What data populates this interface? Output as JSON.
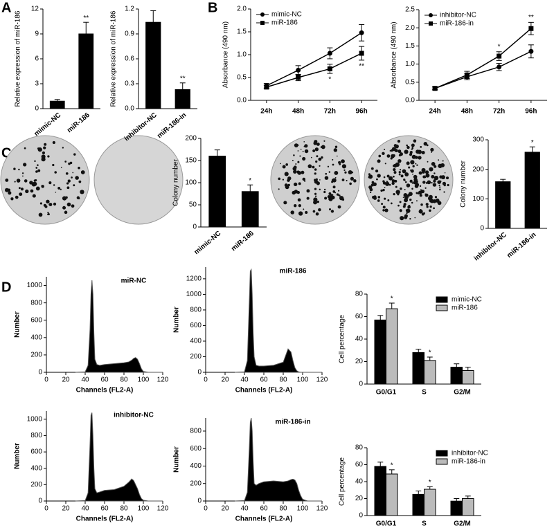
{
  "panel_letters": [
    "A",
    "B",
    "C",
    "D"
  ],
  "chart_data": [
    {
      "type": "bar",
      "ylabel": "Relative expression of miR-186",
      "categories": [
        "mimic-NC",
        "miR-186"
      ],
      "values": [
        0.9,
        9.0
      ],
      "errors": [
        0.2,
        1.4
      ],
      "significance": [
        null,
        "**"
      ],
      "color": "#000000",
      "ylim": [
        0,
        12
      ],
      "yticks": [
        0,
        3,
        6,
        9,
        12
      ]
    },
    {
      "type": "bar",
      "ylabel": "Relative expression of miR-186",
      "categories": [
        "inhibitor-NC",
        "miR-186-in"
      ],
      "values": [
        1.04,
        0.23
      ],
      "errors": [
        0.14,
        0.08
      ],
      "significance": [
        null,
        "**"
      ],
      "color": "#000000",
      "ylim": [
        0,
        1.2
      ],
      "yticks": [
        {
          "value": 0,
          "label": "0.0"
        },
        0.3,
        0.6,
        0.9,
        1.2
      ]
    },
    {
      "type": "line",
      "ylabel": "Absorbance (490 nm)",
      "categories": [
        "24h",
        "48h",
        "72h",
        "96h"
      ],
      "legend": "upper left",
      "ylim": [
        0,
        2.0
      ],
      "yticks": [
        {
          "value": 0,
          "label": "0.0"
        },
        0.5,
        {
          "value": 1,
          "label": "1.0"
        },
        1.5,
        {
          "value": 2,
          "label": "2.0"
        }
      ],
      "series": [
        {
          "name": "mimic-NC",
          "color": "#000000",
          "marker": "circle",
          "values": [
            0.32,
            0.66,
            1.03,
            1.48
          ],
          "errors": [
            0.05,
            0.1,
            0.12,
            0.18
          ],
          "significance": [
            null,
            null,
            null,
            null
          ]
        },
        {
          "name": "miR-186",
          "color": "#000000",
          "marker": "square",
          "values": [
            0.29,
            0.5,
            0.69,
            1.03
          ],
          "errors": [
            0.04,
            0.07,
            0.1,
            0.15
          ],
          "significance": [
            null,
            null,
            "*",
            "**"
          ]
        }
      ]
    },
    {
      "type": "line",
      "ylabel": "Absorbance (490 nm)",
      "categories": [
        "24h",
        "48h",
        "72h",
        "96h"
      ],
      "legend": "upper left",
      "ylim": [
        0,
        2.5
      ],
      "yticks": [
        {
          "value": 0,
          "label": "0.0"
        },
        0.5,
        {
          "value": 1,
          "label": "1.0"
        },
        1.5,
        {
          "value": 2,
          "label": "2.0"
        },
        2.5
      ],
      "series": [
        {
          "name": "inhibitor-NC",
          "color": "#000000",
          "marker": "circle",
          "values": [
            0.33,
            0.65,
            0.92,
            1.35
          ],
          "errors": [
            0.04,
            0.08,
            0.1,
            0.18
          ],
          "significance": [
            null,
            null,
            null,
            null
          ]
        },
        {
          "name": "miR-186-in",
          "color": "#000000",
          "marker": "square",
          "values": [
            0.33,
            0.7,
            1.22,
            1.98
          ],
          "errors": [
            0.04,
            0.1,
            0.12,
            0.17
          ],
          "significance": [
            null,
            null,
            "*",
            "**"
          ]
        }
      ]
    },
    {
      "type": "bar",
      "ylabel": "Colony number",
      "categories": [
        "mimic-NC",
        "miR-186"
      ],
      "values": [
        160,
        80
      ],
      "errors": [
        14,
        15
      ],
      "significance": [
        null,
        "*"
      ],
      "color": "#000000",
      "ylim": [
        0,
        200
      ],
      "yticks": [
        0,
        50,
        100,
        150,
        200
      ]
    },
    {
      "type": "bar",
      "ylabel": "Colony number",
      "categories": [
        "inhibitor-NC",
        "miR-186-in"
      ],
      "values": [
        158,
        258
      ],
      "errors": [
        8,
        18
      ],
      "significance": [
        null,
        "*"
      ],
      "color": "#000000",
      "ylim": [
        0,
        300
      ],
      "yticks": [
        0,
        100,
        200,
        300
      ]
    },
    {
      "type": "area",
      "title": "miR-NC",
      "xlabel": "Channels (FL2-A)",
      "ylabel": "Number",
      "color": "#000000",
      "x": [
        30,
        40,
        43,
        45,
        46,
        47,
        48,
        49,
        50,
        52,
        55,
        60,
        70,
        80,
        85,
        88,
        90,
        92,
        94,
        96,
        98,
        100,
        105,
        120
      ],
      "values": [
        0,
        5,
        80,
        500,
        900,
        1060,
        900,
        450,
        150,
        90,
        80,
        90,
        100,
        110,
        120,
        140,
        160,
        170,
        150,
        100,
        40,
        10,
        0,
        0
      ],
      "xlim": [
        0,
        120
      ],
      "xticks": [
        0,
        20,
        40,
        60,
        80,
        100,
        120
      ],
      "ylim": [
        0,
        1100
      ],
      "yticks": [
        0,
        200,
        400,
        600,
        800,
        1000
      ]
    },
    {
      "type": "area",
      "title": "miR-186",
      "xlabel": "Channels (FL2-A)",
      "ylabel": "Number",
      "color": "#000000",
      "x": [
        30,
        40,
        43,
        45,
        46,
        47,
        48,
        49,
        50,
        52,
        55,
        60,
        70,
        80,
        85,
        88,
        90,
        92,
        94,
        96,
        98,
        100,
        105,
        120
      ],
      "values": [
        0,
        5,
        150,
        900,
        1300,
        1320,
        1000,
        500,
        200,
        90,
        80,
        80,
        90,
        130,
        300,
        260,
        150,
        60,
        20,
        5,
        0,
        0,
        0,
        0
      ],
      "xlim": [
        0,
        120
      ],
      "xticks": [
        0,
        20,
        40,
        60,
        80,
        100,
        120
      ],
      "ylim": [
        0,
        1350
      ],
      "yticks": [
        0,
        200,
        400,
        600,
        800,
        1000,
        1200
      ]
    },
    {
      "type": "area",
      "title": "inhibitor-NC",
      "xlabel": "Channels (FL2-A)",
      "ylabel": "Number",
      "color": "#000000",
      "x": [
        30,
        40,
        43,
        45,
        46,
        47,
        48,
        49,
        50,
        52,
        55,
        60,
        70,
        80,
        85,
        88,
        90,
        92,
        94,
        96,
        98,
        100,
        105,
        120
      ],
      "values": [
        0,
        5,
        100,
        700,
        1050,
        1080,
        800,
        400,
        150,
        100,
        110,
        130,
        140,
        180,
        230,
        270,
        250,
        200,
        150,
        80,
        30,
        10,
        0,
        0
      ],
      "xlim": [
        0,
        120
      ],
      "xticks": [
        0,
        20,
        40,
        60,
        80,
        100,
        120
      ],
      "ylim": [
        0,
        1100
      ],
      "yticks": [
        0,
        200,
        400,
        600,
        800,
        1000
      ]
    },
    {
      "type": "area",
      "title": "miR-186-in",
      "xlabel": "Channels (FL2-A)",
      "ylabel": "Number",
      "color": "#000000",
      "x": [
        30,
        40,
        43,
        45,
        46,
        47,
        48,
        49,
        50,
        52,
        55,
        60,
        70,
        80,
        85,
        88,
        90,
        92,
        94,
        96,
        98,
        100,
        105,
        120
      ],
      "values": [
        0,
        5,
        100,
        600,
        900,
        950,
        800,
        450,
        200,
        180,
        200,
        220,
        230,
        220,
        230,
        245,
        250,
        240,
        200,
        120,
        60,
        20,
        0,
        0
      ],
      "xlim": [
        0,
        120
      ],
      "xticks": [
        0,
        20,
        40,
        60,
        80,
        100,
        120
      ],
      "ylim": [
        0,
        950
      ],
      "yticks": [
        0,
        200,
        400,
        600,
        800
      ]
    },
    {
      "type": "bar",
      "ylabel": "Cell percentage",
      "categories": [
        "G0/G1",
        "S",
        "G2/M"
      ],
      "legend": "upper right",
      "ylim": [
        0,
        80
      ],
      "yticks": [
        0,
        20,
        40,
        60,
        80
      ],
      "series": [
        {
          "name": "mimic-NC",
          "color": "#000000",
          "values": [
            57,
            28,
            15
          ],
          "errors": [
            4,
            3,
            3
          ],
          "significance": [
            null,
            null,
            null
          ]
        },
        {
          "name": "miR-186",
          "color": "#bbbbbb",
          "values": [
            67,
            21,
            12
          ],
          "errors": [
            5,
            3,
            3
          ],
          "significance": [
            "*",
            "*",
            null
          ]
        }
      ]
    },
    {
      "type": "bar",
      "ylabel": "Cell percentage",
      "categories": [
        "G0/G1",
        "S",
        "G2/M"
      ],
      "legend": "upper right",
      "ylim": [
        0,
        80
      ],
      "yticks": [
        0,
        20,
        40,
        60,
        80
      ],
      "series": [
        {
          "name": "inhibitor-NC",
          "color": "#000000",
          "values": [
            58,
            25,
            17
          ],
          "errors": [
            5,
            4,
            3
          ],
          "significance": [
            null,
            null,
            null
          ]
        },
        {
          "name": "miR-186-in",
          "color": "#bbbbbb",
          "values": [
            49,
            31,
            20
          ],
          "errors": [
            5,
            3,
            3
          ],
          "significance": [
            "*",
            "*",
            null
          ]
        }
      ]
    }
  ]
}
